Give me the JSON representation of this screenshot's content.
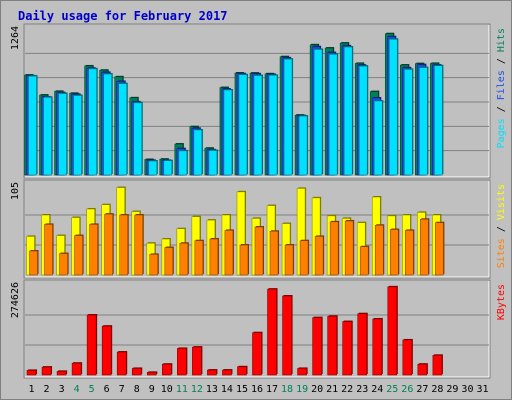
{
  "chart_data": {
    "type": "bar",
    "title": "Daily usage for February 2017",
    "days": [
      "1",
      "2",
      "3",
      "4",
      "5",
      "6",
      "7",
      "8",
      "9",
      "10",
      "11",
      "12",
      "13",
      "14",
      "15",
      "16",
      "17",
      "18",
      "19",
      "20",
      "21",
      "22",
      "23",
      "24",
      "25",
      "26",
      "27",
      "28",
      "29",
      "30",
      "31"
    ],
    "weekend_days": [
      "4",
      "5",
      "11",
      "12",
      "18",
      "19",
      "25",
      "26"
    ],
    "panels": [
      {
        "name": "hits-files-pages",
        "ymax_label": "1264",
        "ymax": 1264,
        "side_labels": [
          "Pages",
          "Files",
          "Hits"
        ],
        "series": [
          {
            "name": "Hits",
            "values": [
              865,
              692,
              724,
              707,
              944,
              907,
              850,
              668,
              134,
              137,
              268,
              418,
              232,
              757,
              883,
              882,
              876,
              1024,
              518,
              1127,
              1099,
              1142,
              966,
              722,
              1223,
              952,
              964,
              966,
              0,
              0,
              0
            ]
          },
          {
            "name": "Files",
            "values": [
              858,
              676,
              713,
              698,
              925,
              888,
              810,
              633,
              127,
              127,
              228,
              404,
              218,
              744,
              877,
              876,
              871,
              1014,
              514,
              1110,
              1060,
              1118,
              951,
              667,
              1197,
              928,
              955,
              952,
              0,
              0,
              0
            ]
          },
          {
            "name": "Pages",
            "values": [
              856,
              672,
              705,
              688,
              919,
              874,
              791,
              625,
              121,
              124,
              209,
              390,
              212,
              736,
              868,
              861,
              863,
              1003,
              510,
              1087,
              1045,
              1108,
              942,
              641,
              1175,
              914,
              930,
              946,
              0,
              0,
              0
            ]
          }
        ]
      },
      {
        "name": "visits-sites",
        "ymax_label": "105",
        "ymax": 105,
        "side_labels": [
          "Sites",
          "Visits"
        ],
        "series": [
          {
            "name": "Visits",
            "values": [
              45,
              70,
              46,
              67,
              77,
              82,
              102,
              74,
              37,
              42,
              54,
              68,
              64,
              70,
              97,
              66,
              81,
              60,
              101,
              90,
              69,
              66,
              61,
              91,
              69,
              70,
              73,
              70,
              0,
              0,
              0
            ]
          },
          {
            "name": "Sites",
            "values": [
              28,
              59,
              25,
              46,
              59,
              71,
              70,
              70,
              24,
              32,
              37,
              40,
              42,
              52,
              35,
              56,
              51,
              35,
              40,
              45,
              62,
              63,
              33,
              58,
              53,
              52,
              65,
              61,
              0,
              0,
              0
            ]
          }
        ]
      },
      {
        "name": "kbytes",
        "ymax_label": "274626",
        "ymax": 274626,
        "side_labels": [
          "KBytes"
        ],
        "series": [
          {
            "name": "KBytes",
            "values": [
              14000,
              24000,
              11000,
              36000,
              183000,
              149000,
              70000,
              20000,
              8000,
              33000,
              81000,
              85000,
              15000,
              15000,
              25000,
              129000,
              262000,
              241000,
              20000,
              175000,
              179000,
              163000,
              187000,
              171000,
              269000,
              107000,
              33000,
              60000,
              0,
              0,
              0
            ]
          }
        ]
      }
    ],
    "colors": {
      "background": "#c0c0c0",
      "plot_background": "#c0c0c0",
      "grid": "#808080",
      "title": "#0000cc",
      "hits": "#00805a",
      "files": "#1f4de0",
      "pages": "#00e0ff",
      "visits": "#ffff00",
      "sites": "#ff8000",
      "kbytes": "#ff0000",
      "weekday_label": "#000000",
      "weekend_label": "#00805a"
    }
  }
}
